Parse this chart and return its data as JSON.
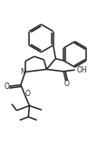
{
  "bg_color": "#ffffff",
  "line_color": "#222222",
  "line_width": 1.1,
  "text_color": "#222222",
  "oh_label": "OH",
  "o_label": "O",
  "n_label": "N",
  "fig_width": 1.18,
  "fig_height": 1.6,
  "dpi": 100,
  "font_size": 5.5
}
